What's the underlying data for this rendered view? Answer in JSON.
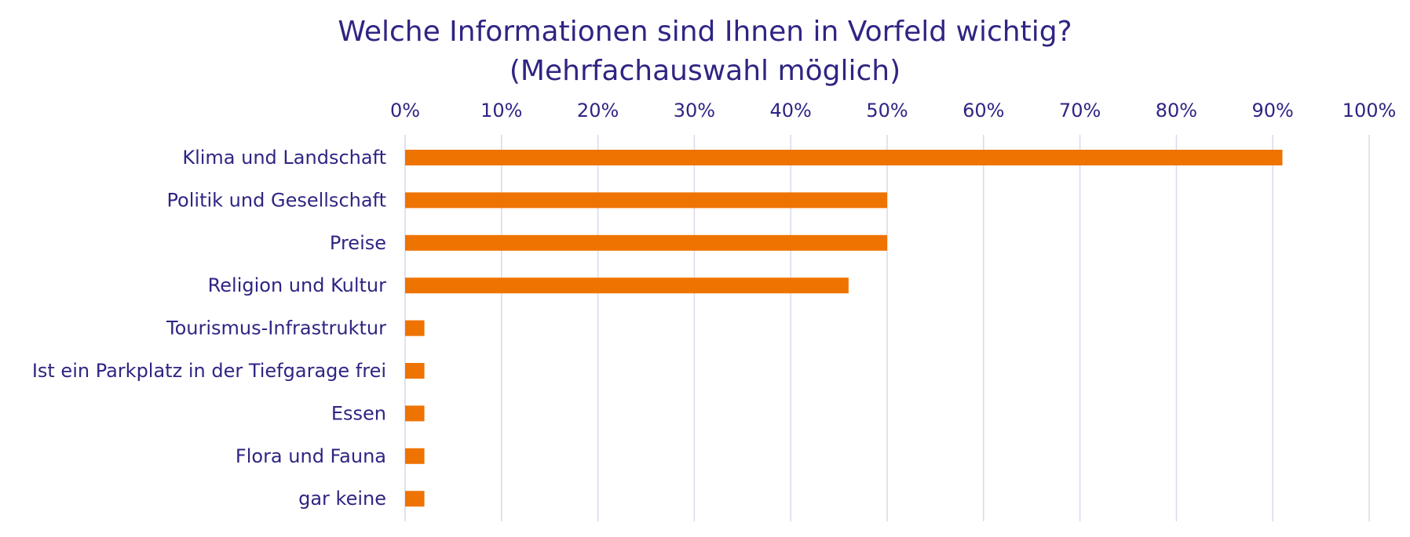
{
  "chart_data": {
    "type": "bar",
    "orientation": "horizontal",
    "title": "Welche Informationen sind Ihnen in Vorfeld wichtig?",
    "subtitle": "(Mehrfachauswahl möglich)",
    "xlabel": "",
    "ylabel": "",
    "xlim": [
      0,
      100
    ],
    "tick_labels": [
      "0%",
      "10%",
      "20%",
      "30%",
      "40%",
      "50%",
      "60%",
      "70%",
      "80%",
      "90%",
      "100%"
    ],
    "x_axis_position": "top",
    "grid": true,
    "legend": "none",
    "categories": [
      "Klima und Landschaft",
      "Politik und Gesellschaft",
      "Preise",
      "Religion und Kultur",
      "Tourismus-Infrastruktur",
      "Ist ein Parkplatz in der Tiefgarage frei",
      "Essen",
      "Flora und Fauna",
      "gar keine"
    ],
    "values": [
      91,
      50,
      50,
      46,
      2,
      2,
      2,
      2,
      2
    ],
    "unit": "%"
  },
  "colors": {
    "bar": "#ef7300",
    "text": "#2e2583",
    "grid": "#d9d8ec"
  }
}
